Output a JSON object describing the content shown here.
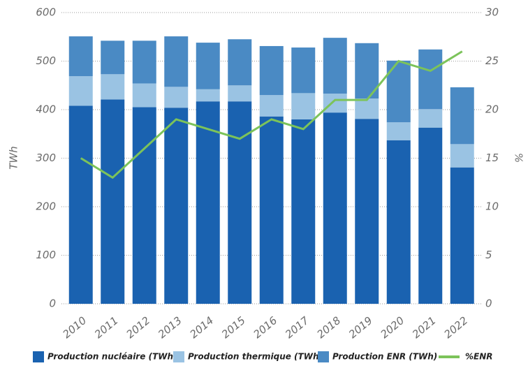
{
  "chart_data": {
    "type": "bar",
    "stacked": true,
    "categories": [
      "2010",
      "2011",
      "2012",
      "2013",
      "2014",
      "2015",
      "2016",
      "2017",
      "2018",
      "2019",
      "2020",
      "2021",
      "2022"
    ],
    "series": [
      {
        "name": "Production nucléaire (TWh)",
        "color": "#1a62b0",
        "values": [
          408,
          421,
          405,
          404,
          417,
          417,
          386,
          380,
          394,
          381,
          337,
          363,
          281
        ]
      },
      {
        "name": "Production thermique (TWh)",
        "color": "#9ac3e3",
        "values": [
          61,
          52,
          49,
          43,
          25,
          33,
          44,
          54,
          39,
          42,
          37,
          38,
          48
        ]
      },
      {
        "name": "Production ENR (TWh)",
        "color": "#4a8ac4",
        "values": [
          82,
          69,
          88,
          104,
          96,
          95,
          101,
          94,
          115,
          114,
          127,
          123,
          117
        ]
      },
      {
        "name": "%ENR",
        "color": "#7cc35a",
        "type": "line",
        "axis": "y2",
        "values": [
          15,
          13,
          16,
          19,
          18,
          17,
          19,
          18,
          21,
          21,
          25,
          24,
          26
        ]
      }
    ],
    "ylabel": "TWh",
    "y2label": "%",
    "ylim": [
      0,
      600
    ],
    "yticks": [
      0,
      100,
      200,
      300,
      400,
      500,
      600
    ],
    "y2lim": [
      0,
      30
    ],
    "y2ticks": [
      0,
      5,
      10,
      15,
      20,
      25,
      30
    ],
    "grid": true,
    "legend": "bottom"
  }
}
